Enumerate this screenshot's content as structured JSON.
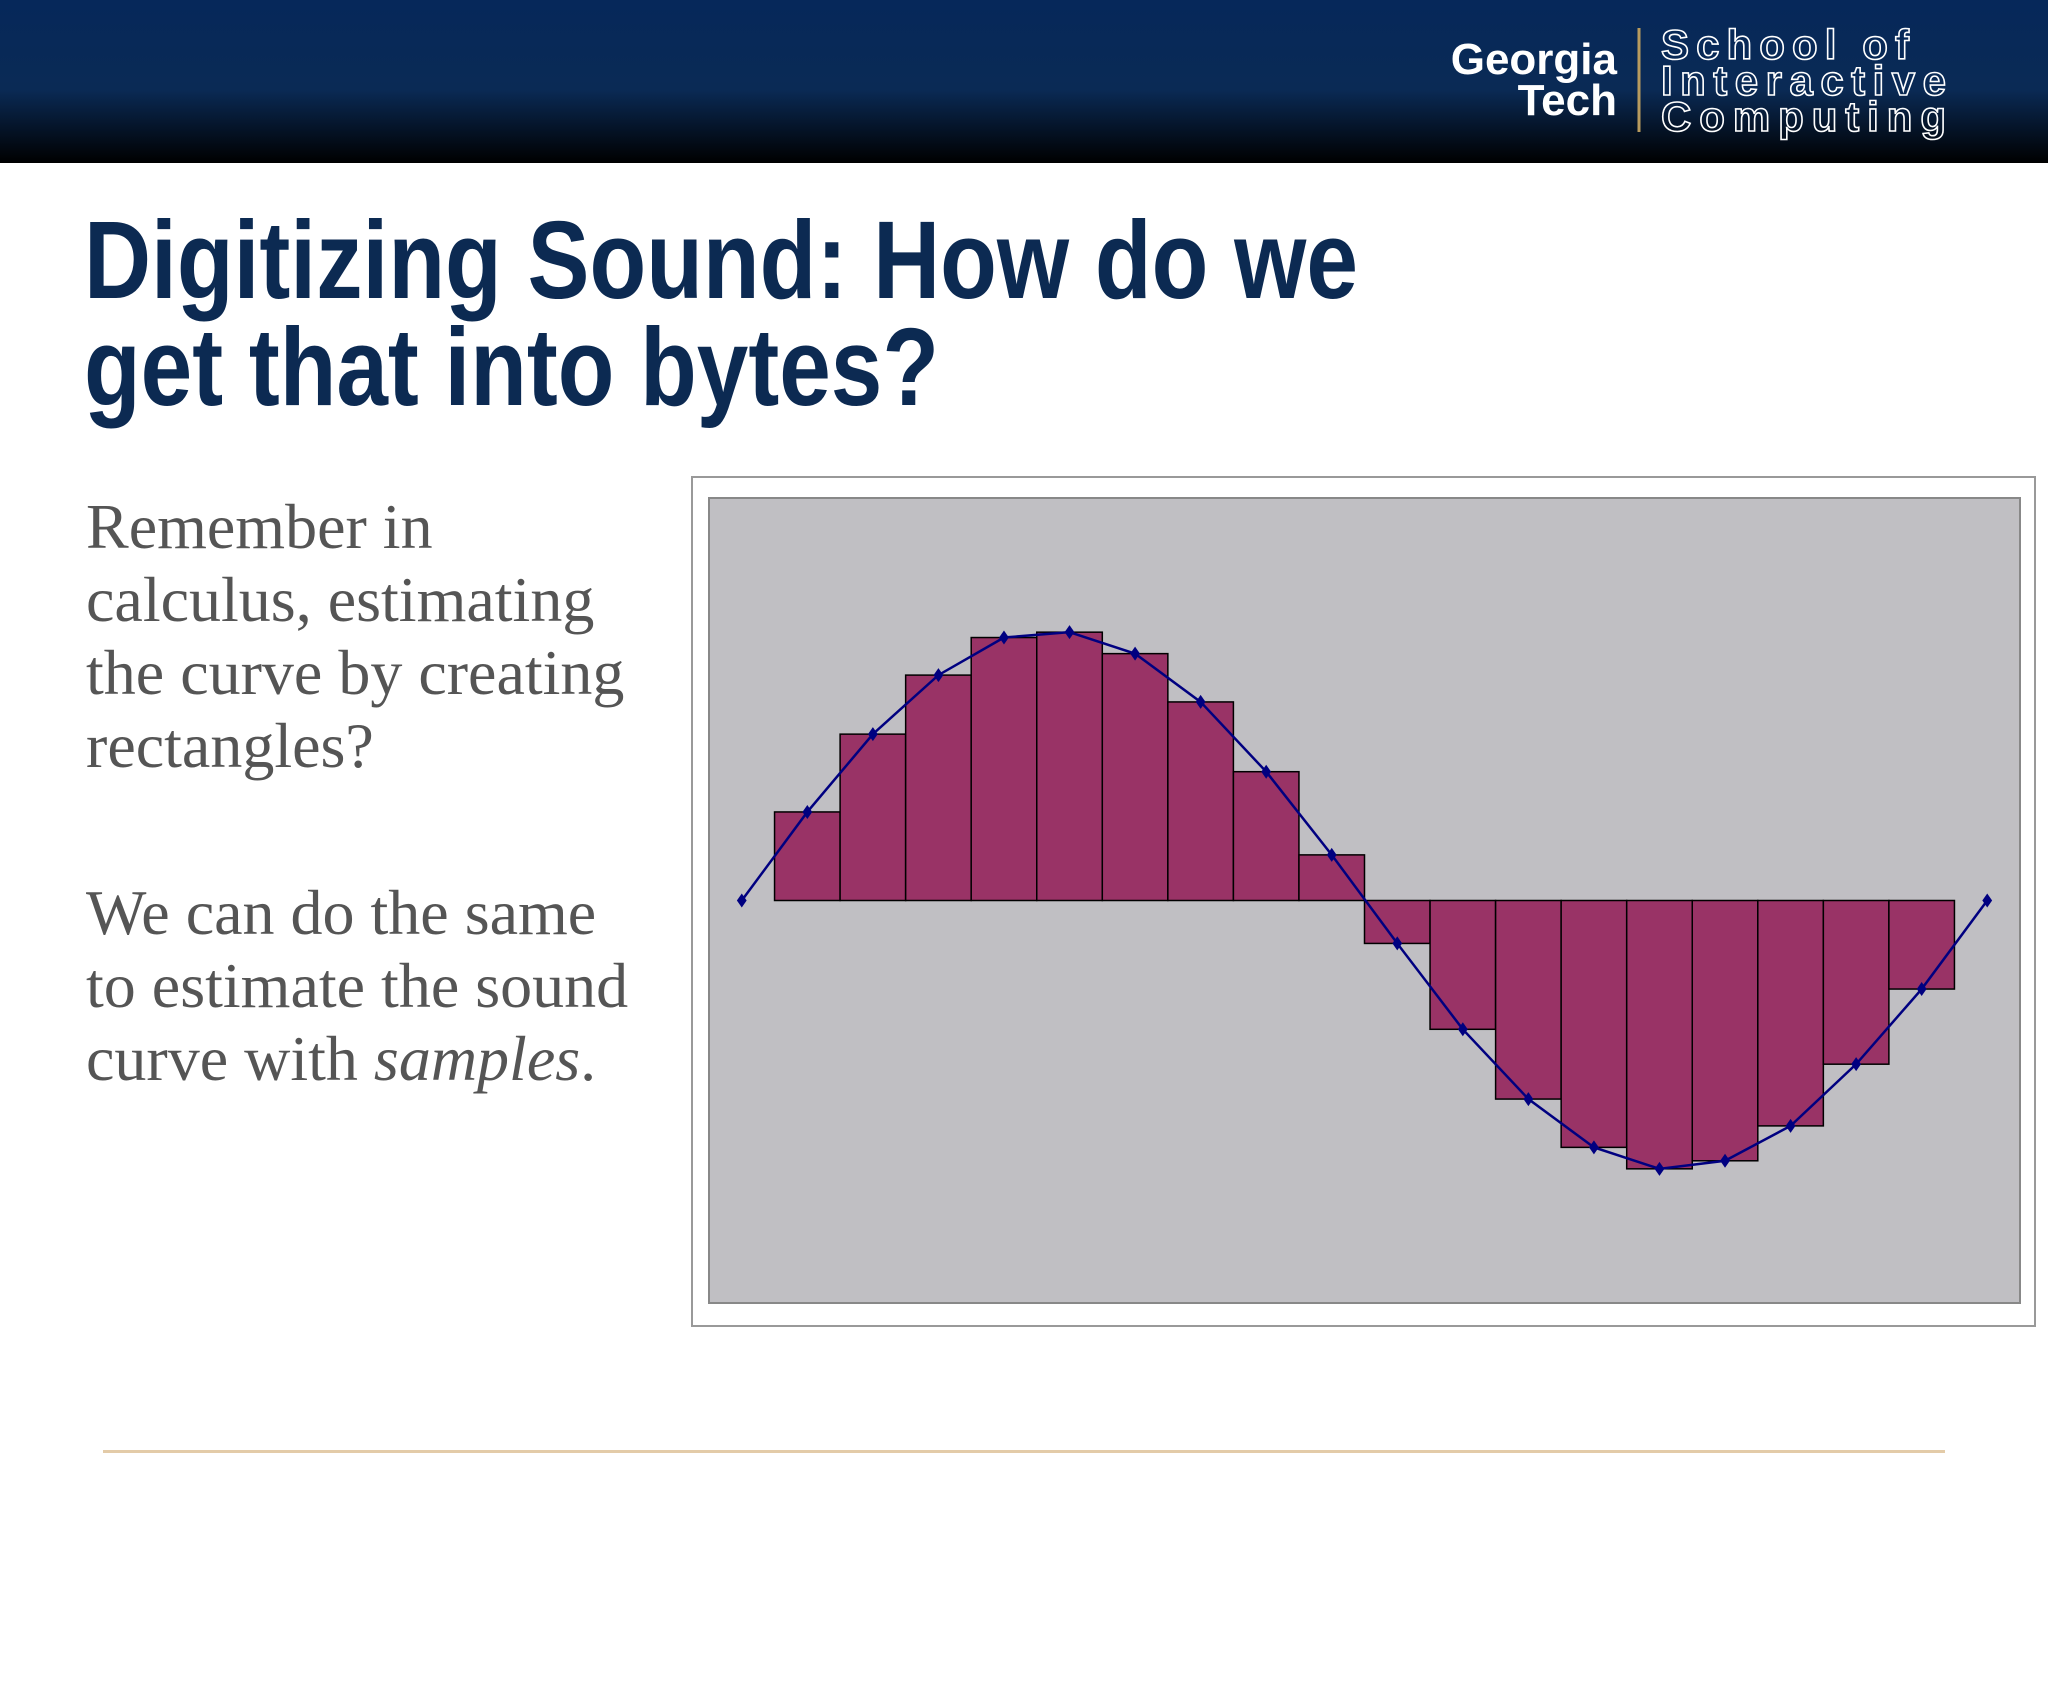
{
  "logo": {
    "university": [
      "Georgia",
      "Tech"
    ],
    "school": [
      "School of",
      "Interactive",
      "Computing"
    ]
  },
  "title": [
    "Digitizing Sound: How do we",
    "get that into bytes?"
  ],
  "body": {
    "paragraph1": "Remember in calculus, estimating the curve by creating rectangles?",
    "paragraph2": {
      "text": "We can do the same to estimate the sound curve with",
      "emphasis": "samples",
      "end": "."
    }
  },
  "chart_data": {
    "type": "combo",
    "ylim": [
      -1.5,
      1.5
    ],
    "background": "#c0bfc3",
    "series": [
      {
        "type": "bar",
        "color": "#993366",
        "values": [
          null,
          0.33,
          0.62,
          0.84,
          0.98,
          1.0,
          0.92,
          0.74,
          0.48,
          0.17,
          -0.16,
          -0.48,
          -0.74,
          -0.92,
          -1.0,
          -0.97,
          -0.84,
          -0.61,
          -0.33,
          null
        ]
      },
      {
        "type": "line",
        "color": "#000080",
        "values": [
          0,
          0.33,
          0.62,
          0.84,
          0.98,
          1.0,
          0.92,
          0.74,
          0.48,
          0.17,
          -0.16,
          -0.48,
          -0.74,
          -0.92,
          -1.0,
          -0.97,
          -0.84,
          -0.61,
          -0.33,
          0
        ]
      }
    ]
  }
}
